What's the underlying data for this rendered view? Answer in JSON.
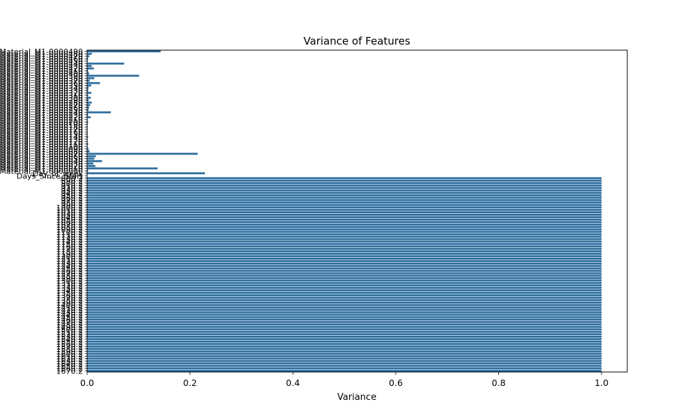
{
  "chart_data": {
    "type": "bar",
    "orientation": "horizontal",
    "title": "Variance of Features",
    "xlabel": "Variance",
    "ylabel": "",
    "xlim": [
      0,
      1.05
    ],
    "x_ticks": [
      0.0,
      0.2,
      0.4,
      0.6,
      0.8,
      1.0
    ],
    "x_tick_labels": [
      "0.0",
      "0.2",
      "0.4",
      "0.6",
      "0.8",
      "1.0"
    ],
    "bar_color": "#2e6e9e",
    "grid": false,
    "legend": "none",
    "categories": [
      "Material_M1-0000490",
      "Material_M1-0000480",
      "Material_M1-0000470",
      "Material_M1-0000460",
      "Material_M1-0000450",
      "Material_M1-0000440",
      "Material_M1-0000430",
      "Material_M1-0000420",
      "Material_M1-0000410",
      "Material_M1-0000400",
      "Material_M1-0000390",
      "Material_M1-0000380",
      "Material_M1-0000370",
      "Material_M1-0000360",
      "Material_M1-0000350",
      "Material_M1-0000340",
      "Material_M1-0000330",
      "Material_M1-0000320",
      "Material_M1-0000310",
      "Material_M1-0000300",
      "Material_M1-0000290",
      "Material_M1-0000280",
      "Material_M1-0000270",
      "Material_M1-0000260",
      "Material_M1-0000250",
      "Material_M1-0000240",
      "Material_M1-0000230",
      "Material_M1-0000220",
      "Material_M1-0000210",
      "Material_M1-0000200",
      "Material_M1-0000190",
      "Material_M1-0000180",
      "Material_M1-0000170",
      "Material_M1-0000160",
      "Material_M1-0000150",
      "Material_M1-0000140",
      "Material_M1-0000130",
      "Material_M1-0000120",
      "Material_M1-0000110",
      "Material_M1-0000100",
      "Material_M1-0000090",
      "Material_M1-0000080",
      "Material_M1-0000070",
      "Material_M1-0000060",
      "Material_M1-0000050",
      "Material_M1-0000040",
      "Material_M1-0000030",
      "Material_M1-0000020",
      "Material_M1-0000010",
      "Material_M1-0000000",
      "Day_of_week",
      "Days_Since_Start",
      "880.2",
      "890.2",
      "900.2",
      "910.2",
      "920.2",
      "930.2",
      "940.2",
      "950.2",
      "960.2",
      "970.2",
      "980.2",
      "990.2",
      "1000.2",
      "1010.2",
      "1020.2",
      "1030.2",
      "1040.2",
      "1050.2",
      "1060.2",
      "1070.2",
      "1080.2",
      "1090.2",
      "1100.2",
      "1110.2",
      "1120.2",
      "1130.2",
      "1140.2",
      "1150.2",
      "1160.2",
      "1170.2",
      "1180.2",
      "1190.2",
      "1200.2",
      "1210.2",
      "1220.2",
      "1230.2",
      "1240.2",
      "1250.2",
      "1260.2",
      "1270.2",
      "1280.2",
      "1290.2",
      "1300.2",
      "1310.2",
      "1320.2",
      "1330.2",
      "1340.2",
      "1350.2",
      "1360.2",
      "1370.2",
      "1380.2",
      "1390.2",
      "1400.2",
      "1410.2",
      "1420.2",
      "1430.2",
      "1440.2",
      "1450.2",
      "1460.2",
      "1470.2",
      "1480.2",
      "1490.2",
      "1500.2",
      "1510.2",
      "1520.2",
      "1530.2",
      "1540.2",
      "1550.2",
      "1560.2",
      "1570.2",
      "1580.2",
      "1590.2",
      "1600.2",
      "1610.2",
      "1620.2",
      "1630.2",
      "1640.2",
      "1650.2",
      "1660.2",
      "1670.2"
    ],
    "values": [
      0.143,
      0.009,
      0.004,
      0.002,
      0.001,
      0.072,
      0.009,
      0.013,
      0.002,
      0.004,
      0.101,
      0.014,
      0.005,
      0.025,
      0.008,
      0.003,
      0.002,
      0.008,
      0.002,
      0.007,
      0.003,
      0.009,
      0.006,
      0.004,
      0.003,
      0.046,
      0.002,
      0.007,
      0.001,
      0.002,
      0.001,
      0.001,
      0.001,
      0.001,
      0.001,
      0.002,
      0.001,
      0.001,
      0.002,
      0.001,
      0.003,
      0.005,
      0.215,
      0.017,
      0.014,
      0.029,
      0.012,
      0.016,
      0.137,
      0.002,
      0.229,
      0.0,
      1.0,
      1.0,
      1.0,
      1.0,
      1.0,
      1.0,
      1.0,
      1.0,
      1.0,
      1.0,
      1.0,
      1.0,
      1.0,
      1.0,
      1.0,
      1.0,
      1.0,
      1.0,
      1.0,
      1.0,
      1.0,
      1.0,
      1.0,
      1.0,
      1.0,
      1.0,
      1.0,
      1.0,
      1.0,
      1.0,
      1.0,
      1.0,
      1.0,
      1.0,
      1.0,
      1.0,
      1.0,
      1.0,
      1.0,
      1.0,
      1.0,
      1.0,
      1.0,
      1.0,
      1.0,
      1.0,
      1.0,
      1.0,
      1.0,
      1.0,
      1.0,
      1.0,
      1.0,
      1.0,
      1.0,
      1.0,
      1.0,
      1.0,
      1.0,
      1.0,
      1.0,
      1.0,
      1.0,
      1.0,
      1.0,
      1.0,
      1.0,
      1.0,
      1.0,
      1.0,
      1.0,
      1.0,
      1.0,
      1.0,
      1.0,
      1.0,
      1.0,
      1.0,
      1.0,
      1.0
    ]
  }
}
